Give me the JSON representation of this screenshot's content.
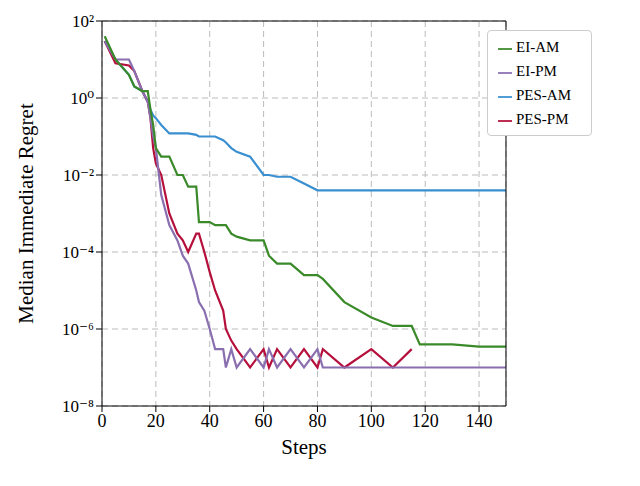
{
  "chart_data": {
    "type": "line",
    "x_label": "Steps",
    "y_label": "Median Immediate Regret",
    "log": "y",
    "grid": true,
    "legend": "top-right",
    "xlim": [
      0,
      150
    ],
    "xticks": [
      0,
      20,
      40,
      60,
      80,
      100,
      120,
      140
    ],
    "ylim": [
      1e-08,
      100
    ],
    "yticks": [
      {
        "value": 1e-08,
        "label": "10⁻⁸"
      },
      {
        "value": 1e-06,
        "label": "10⁻⁶"
      },
      {
        "value": 0.0001,
        "label": "10⁻⁴"
      },
      {
        "value": 0.01,
        "label": "10⁻²"
      },
      {
        "value": 1,
        "label": "10⁰"
      },
      {
        "value": 100,
        "label": "10²"
      }
    ],
    "x": [
      1,
      5,
      10,
      12,
      15,
      17,
      18,
      19,
      20,
      22,
      25,
      28,
      30,
      32,
      35,
      36,
      38,
      40,
      42,
      45,
      46,
      48,
      50,
      55,
      60,
      62,
      65,
      70,
      75,
      80,
      82,
      90,
      100,
      108,
      115,
      118,
      120,
      130,
      140,
      150
    ],
    "series": [
      {
        "name": "PES-AM",
        "color": "#3a8fd0",
        "values": [
          30,
          10,
          4,
          2,
          1.5,
          0.8,
          0.5,
          0.35,
          0.3,
          0.2,
          0.12,
          0.12,
          0.12,
          0.12,
          0.11,
          0.1,
          0.1,
          0.1,
          0.1,
          0.08,
          0.07,
          0.05,
          0.04,
          0.03,
          0.01,
          0.01,
          0.009,
          0.009,
          0.006,
          0.004,
          0.004,
          0.004,
          0.004,
          0.004,
          0.004,
          0.004,
          0.004,
          0.004,
          0.004,
          0.004
        ]
      },
      {
        "name": "PES-PM",
        "color": "#b5103c",
        "values": [
          30,
          8,
          7,
          5,
          1.5,
          0.8,
          0.3,
          0.05,
          0.02,
          0.01,
          0.001,
          0.0003,
          0.0002,
          0.0001,
          0.0003,
          0.0003,
          0.0001,
          3e-05,
          1e-05,
          3e-06,
          1e-06,
          5e-07,
          3e-07,
          1e-07,
          3e-07,
          1e-07,
          3e-07,
          1e-07,
          3e-07,
          1e-07,
          3e-07,
          1e-07,
          3e-07,
          1e-07,
          3e-07,
          null,
          null,
          null,
          null,
          null
        ]
      },
      {
        "name": "EI-PM",
        "color": "#8a6fb0",
        "values": [
          30,
          10,
          10,
          5,
          1.5,
          0.8,
          0.3,
          0.1,
          0.05,
          0.003,
          0.0005,
          0.0002,
          8e-05,
          5e-05,
          1e-05,
          5e-06,
          3e-06,
          1e-06,
          3e-07,
          3e-07,
          1e-07,
          3e-07,
          1e-07,
          3e-07,
          1e-07,
          3e-07,
          1e-07,
          3e-07,
          1e-07,
          3e-07,
          1e-07,
          1e-07,
          1e-07,
          1e-07,
          1e-07,
          1e-07,
          1e-07,
          1e-07,
          1e-07,
          1e-07
        ]
      },
      {
        "name": "EI-AM",
        "color": "#3a8a2a",
        "values": [
          40,
          10,
          4,
          2,
          1.5,
          1.5,
          0.5,
          0.2,
          0.05,
          0.03,
          0.03,
          0.01,
          0.01,
          0.005,
          0.005,
          0.0006,
          0.0006,
          0.0006,
          0.0005,
          0.0005,
          0.0005,
          0.0003,
          0.00025,
          0.0002,
          0.0002,
          8e-05,
          5e-05,
          5e-05,
          2.5e-05,
          2.5e-05,
          2e-05,
          5e-06,
          2e-06,
          1.2e-06,
          1.2e-06,
          4e-07,
          4e-07,
          4e-07,
          3.5e-07,
          3.5e-07
        ]
      }
    ]
  }
}
